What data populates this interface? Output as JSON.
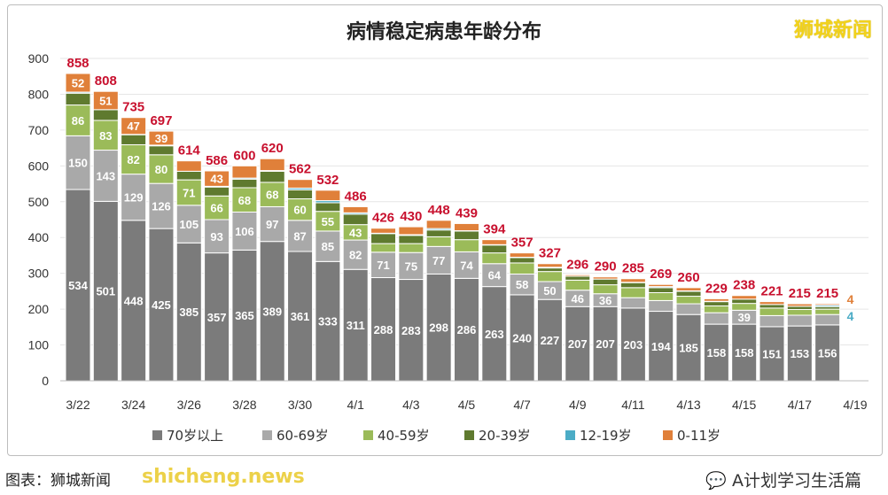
{
  "chart_data": {
    "type": "bar",
    "stacked": true,
    "title": "病情稳定病患年龄分布",
    "categories": [
      "3/22",
      "3/23",
      "3/24",
      "3/25",
      "3/26",
      "3/27",
      "3/28",
      "3/29",
      "3/30",
      "3/31",
      "4/1",
      "4/2",
      "4/3",
      "4/4",
      "4/5",
      "4/6",
      "4/7",
      "4/8",
      "4/9",
      "4/10",
      "4/11",
      "4/12",
      "4/13",
      "4/14",
      "4/15",
      "4/16",
      "4/17",
      "4/18",
      "4/19"
    ],
    "tick_labels": [
      "3/22",
      "3/24",
      "3/26",
      "3/28",
      "3/30",
      "4/1",
      "4/3",
      "4/5",
      "4/7",
      "4/9",
      "4/11",
      "4/13",
      "4/15",
      "4/17",
      "4/19"
    ],
    "ylim": [
      0,
      900
    ],
    "yticks": [
      0,
      100,
      200,
      300,
      400,
      500,
      600,
      700,
      800,
      900
    ],
    "grid": true,
    "legend_position": "bottom",
    "series": [
      {
        "name": "70岁以上",
        "color": "#7b7b7b",
        "values": [
          534,
          501,
          448,
          425,
          385,
          357,
          365,
          389,
          361,
          333,
          311,
          288,
          283,
          298,
          286,
          263,
          240,
          227,
          207,
          207,
          203,
          194,
          185,
          158,
          158,
          151,
          153,
          156,
          null
        ]
      },
      {
        "name": "60-69岁",
        "color": "#a9a9a9",
        "values": [
          150,
          143,
          129,
          126,
          105,
          93,
          106,
          97,
          87,
          85,
          82,
          71,
          75,
          77,
          74,
          64,
          58,
          50,
          46,
          36,
          29,
          30,
          30,
          32,
          39,
          31,
          30,
          29,
          null
        ]
      },
      {
        "name": "40-59岁",
        "color": "#9bbb59",
        "values": [
          86,
          83,
          82,
          80,
          71,
          66,
          68,
          68,
          60,
          55,
          43,
          24,
          25,
          27,
          34,
          30,
          31,
          28,
          28,
          25,
          28,
          22,
          21,
          19,
          19,
          21,
          16,
          15,
          null
        ]
      },
      {
        "name": "20-39岁",
        "color": "#5f7a2f",
        "values": [
          33,
          30,
          28,
          25,
          24,
          25,
          24,
          31,
          25,
          24,
          29,
          28,
          23,
          19,
          24,
          22,
          15,
          10,
          11,
          16,
          14,
          14,
          14,
          12,
          12,
          10,
          9,
          7,
          null
        ]
      },
      {
        "name": "12-19岁",
        "color": "#4bacc6",
        "values": [
          3,
          0,
          1,
          2,
          0,
          2,
          3,
          2,
          5,
          6,
          4,
          1,
          2,
          4,
          1,
          1,
          1,
          2,
          0,
          0,
          1,
          3,
          1,
          1,
          0,
          0,
          0,
          4,
          null
        ]
      },
      {
        "name": "0-11岁",
        "color": "#e0803a",
        "values": [
          52,
          51,
          47,
          39,
          29,
          43,
          34,
          33,
          24,
          29,
          17,
          14,
          22,
          23,
          20,
          14,
          12,
          10,
          4,
          6,
          10,
          6,
          9,
          7,
          10,
          8,
          7,
          4,
          null
        ]
      }
    ],
    "totals": [
      858,
      808,
      735,
      697,
      614,
      586,
      600,
      620,
      562,
      532,
      486,
      426,
      430,
      448,
      439,
      394,
      357,
      327,
      296,
      290,
      285,
      269,
      260,
      229,
      238,
      221,
      215,
      215,
      null
    ],
    "total_label_color": "#c8102e"
  },
  "logo": "狮城新闻",
  "caption": "图表：狮城新闻",
  "watermark": "shicheng.news",
  "wechat_source": "A计划学习生活篇"
}
